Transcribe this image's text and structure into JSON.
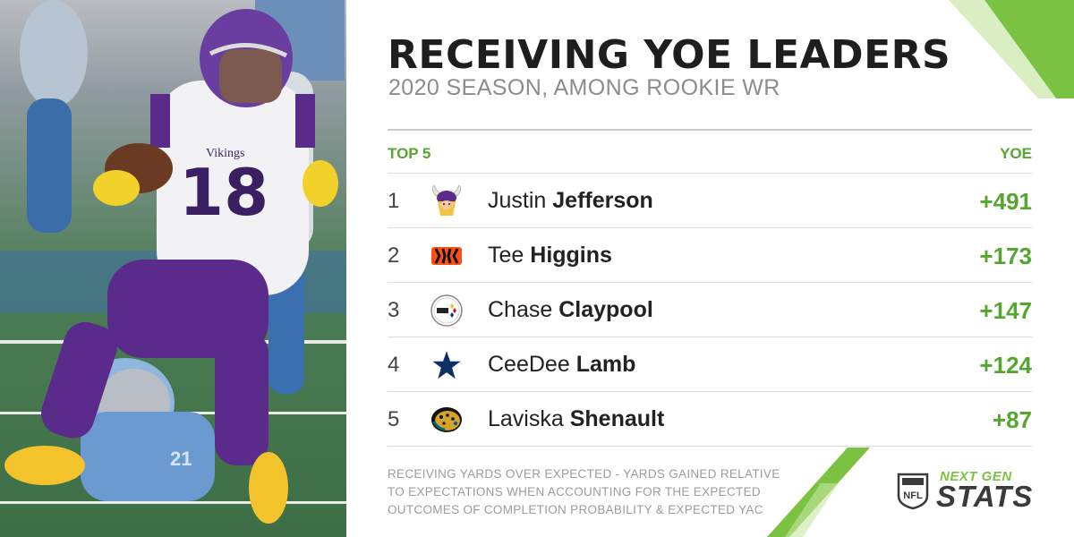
{
  "photo": {
    "jersey_number": "18",
    "team_wordmark": "Vikings"
  },
  "header": {
    "title": "RECEIVING YOE LEADERS",
    "subtitle": "2020 SEASON, AMONG ROOKIE WR"
  },
  "table": {
    "left_header": "TOP 5",
    "right_header": "YOE",
    "rows": [
      {
        "rank": "1",
        "first": "Justin",
        "last": "Jefferson",
        "team_icon": "vikings-logo",
        "yoe": "+491"
      },
      {
        "rank": "2",
        "first": "Tee",
        "last": "Higgins",
        "team_icon": "bengals-logo",
        "yoe": "+173"
      },
      {
        "rank": "3",
        "first": "Chase",
        "last": "Claypool",
        "team_icon": "steelers-logo",
        "yoe": "+147"
      },
      {
        "rank": "4",
        "first": "CeeDee",
        "last": "Lamb",
        "team_icon": "cowboys-logo",
        "yoe": "+124"
      },
      {
        "rank": "5",
        "first": "Laviska",
        "last": "Shenault",
        "team_icon": "jaguars-logo",
        "yoe": "+87"
      }
    ]
  },
  "footnote": {
    "line1": "RECEIVING YARDS OVER EXPECTED - YARDS GAINED RELATIVE",
    "line2": "TO EXPECTATIONS WHEN ACCOUNTING FOR THE EXPECTED",
    "line3": "OUTCOMES OF COMPLETION PROBABILITY & EXPECTED YAC"
  },
  "brand": {
    "shield_text": "NFL",
    "line1": "NEXT GEN",
    "line2": "STATS"
  },
  "colors": {
    "accent_green": "#55a630",
    "stripe_green": "#7cc242",
    "title": "#1e1e1e",
    "subtitle": "#8c8c8c"
  }
}
